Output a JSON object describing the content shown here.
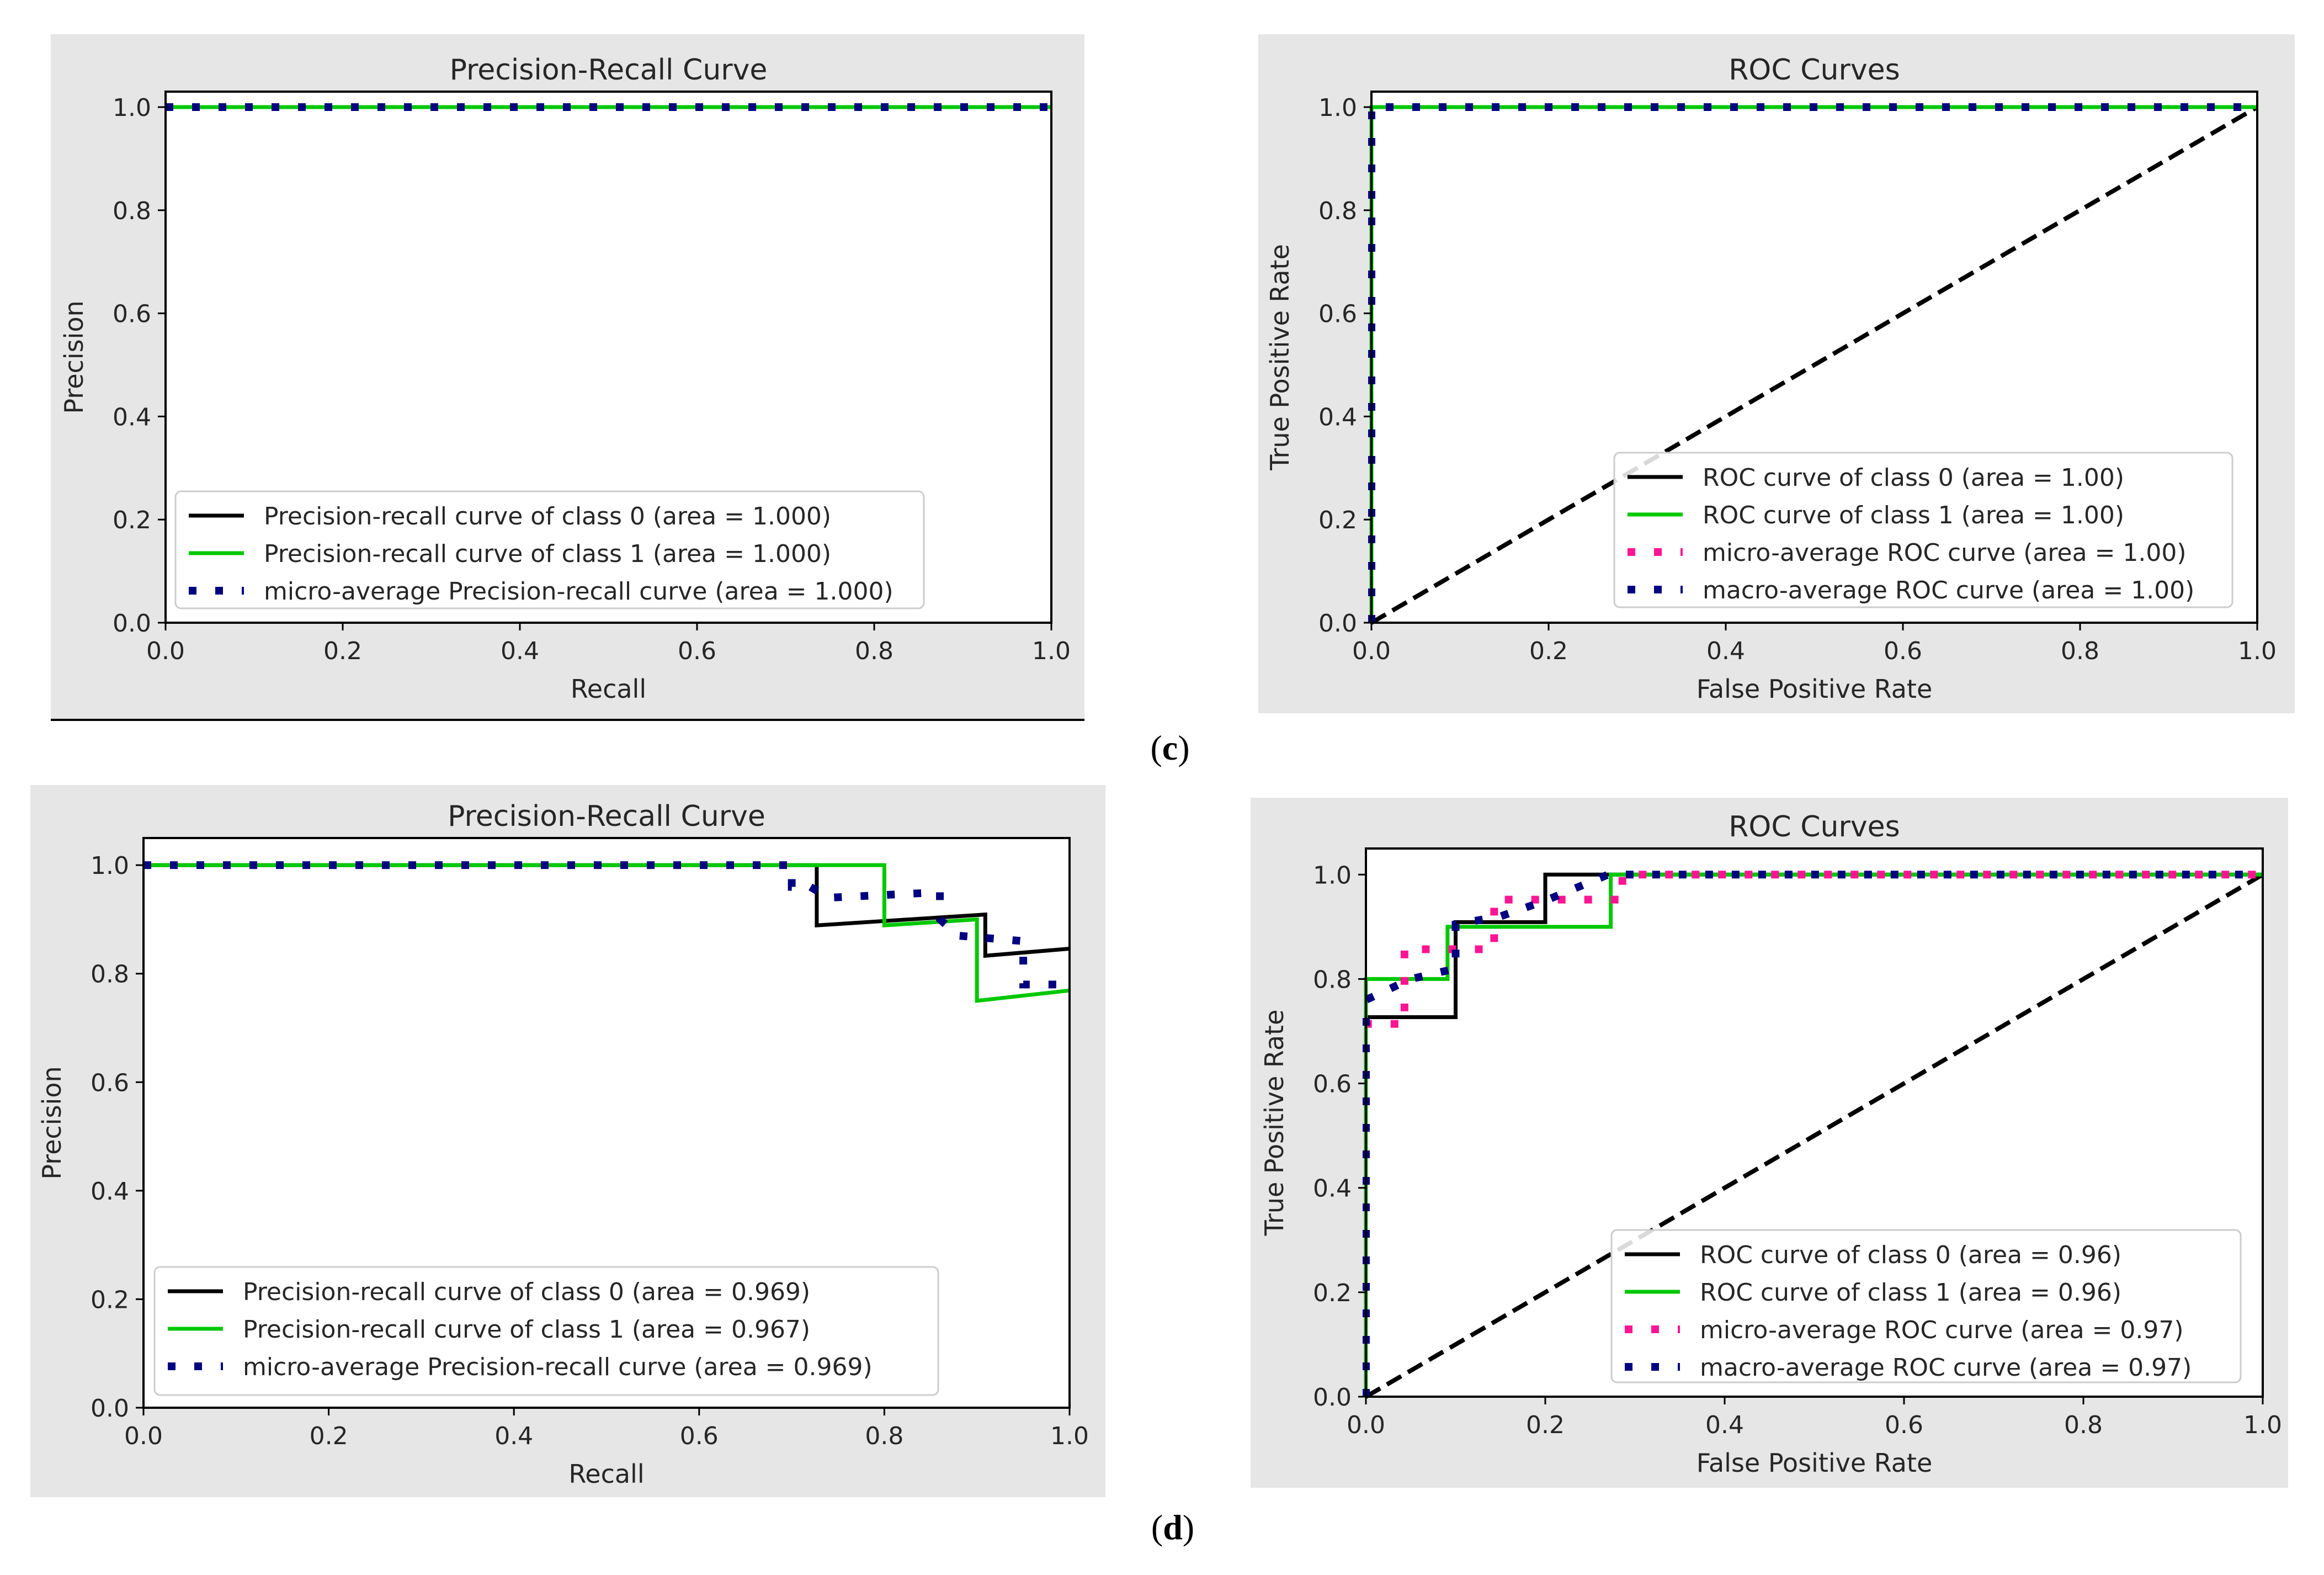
{
  "colors": {
    "panel_bg": "#e6e6e6",
    "plot_bg": "#ffffff",
    "class0": "#000000",
    "class1": "#00c800",
    "micro": "#ff1493",
    "macro": "#000080",
    "diagonal": "#000000"
  },
  "captions": {
    "c_label": "c",
    "d_label": "d"
  },
  "chart_data": [
    {
      "id": "c-pr",
      "type": "line",
      "title": "Precision-Recall Curve",
      "xlabel": "Recall",
      "ylabel": "Precision",
      "xlim": [
        0,
        1
      ],
      "ylim": [
        0,
        1.0
      ],
      "xticks": [
        0.0,
        0.2,
        0.4,
        0.6,
        0.8,
        1.0
      ],
      "yticks": [
        0.0,
        0.2,
        0.4,
        0.6,
        0.8,
        1.0
      ],
      "tick_labels_x": [
        "0.0",
        "0.2",
        "0.4",
        "0.6",
        "0.8",
        "1.0"
      ],
      "tick_labels_y": [
        "0.0",
        "0.2",
        "0.4",
        "0.6",
        "0.8",
        "1.0"
      ],
      "legend_position": "lower-left",
      "series": [
        {
          "name": "Precision-recall curve of class 0 (area = 1.000)",
          "style": "solid",
          "color_key": "class0",
          "x": [
            0,
            1
          ],
          "y": [
            1,
            1
          ]
        },
        {
          "name": "Precision-recall curve of class 1 (area = 1.000)",
          "style": "solid",
          "color_key": "class1",
          "x": [
            0,
            1
          ],
          "y": [
            1,
            1
          ]
        },
        {
          "name": "micro-average Precision-recall curve (area = 1.000)",
          "style": "dotted",
          "color_key": "macro",
          "x": [
            0,
            1
          ],
          "y": [
            1,
            1
          ]
        }
      ]
    },
    {
      "id": "c-roc",
      "type": "line",
      "title": "ROC Curves",
      "xlabel": "False Positive Rate",
      "ylabel": "True Positive Rate",
      "xlim": [
        0,
        1
      ],
      "ylim": [
        0,
        1.0
      ],
      "xticks": [
        0.0,
        0.2,
        0.4,
        0.6,
        0.8,
        1.0
      ],
      "yticks": [
        0.0,
        0.2,
        0.4,
        0.6,
        0.8,
        1.0
      ],
      "tick_labels_x": [
        "0.0",
        "0.2",
        "0.4",
        "0.6",
        "0.8",
        "1.0"
      ],
      "tick_labels_y": [
        "0.0",
        "0.2",
        "0.4",
        "0.6",
        "0.8",
        "1.0"
      ],
      "legend_position": "lower-right",
      "series": [
        {
          "name": "ROC curve of class 0 (area = 1.00)",
          "style": "solid",
          "color_key": "class0",
          "x": [
            0,
            0,
            1
          ],
          "y": [
            0,
            1,
            1
          ]
        },
        {
          "name": "ROC curve of class 1 (area = 1.00)",
          "style": "solid",
          "color_key": "class1",
          "x": [
            0,
            0,
            1
          ],
          "y": [
            0,
            1,
            1
          ]
        },
        {
          "name": "micro-average ROC curve (area = 1.00)",
          "style": "dotted",
          "color_key": "micro",
          "x": [
            0,
            0,
            1
          ],
          "y": [
            0,
            1,
            1
          ]
        },
        {
          "name": "macro-average ROC curve (area = 1.00)",
          "style": "dotted",
          "color_key": "macro",
          "x": [
            0,
            0,
            1
          ],
          "y": [
            0,
            1,
            1
          ]
        }
      ],
      "diagonal": {
        "x": [
          0,
          1
        ],
        "y": [
          0,
          1
        ]
      }
    },
    {
      "id": "d-pr",
      "type": "line",
      "title": "Precision-Recall Curve",
      "xlabel": "Recall",
      "ylabel": "Precision",
      "xlim": [
        0,
        1
      ],
      "ylim": [
        0,
        1.05
      ],
      "xticks": [
        0.0,
        0.2,
        0.4,
        0.6,
        0.8,
        1.0
      ],
      "yticks": [
        0.0,
        0.2,
        0.4,
        0.6,
        0.8,
        1.0
      ],
      "tick_labels_x": [
        "0.0",
        "0.2",
        "0.4",
        "0.6",
        "0.8",
        "1.0"
      ],
      "tick_labels_y": [
        "0.0",
        "0.2",
        "0.4",
        "0.6",
        "0.8",
        "1.0"
      ],
      "legend_position": "lower-left",
      "series": [
        {
          "name": "Precision-recall curve of class 0 (area = 0.969)",
          "style": "solid",
          "color_key": "class0",
          "x": [
            0,
            0.727,
            0.727,
            0.909,
            0.909,
            1.0
          ],
          "y": [
            1.0,
            1.0,
            0.889,
            0.909,
            0.833,
            0.846
          ]
        },
        {
          "name": "Precision-recall curve of class 1 (area = 0.967)",
          "style": "solid",
          "color_key": "class1",
          "x": [
            0,
            0.8,
            0.8,
            0.9,
            0.9,
            1.0
          ],
          "y": [
            1.0,
            1.0,
            0.889,
            0.9,
            0.75,
            0.769
          ]
        },
        {
          "name": "micro-average Precision-recall curve (area = 0.969)",
          "style": "dotted",
          "color_key": "macro",
          "x": [
            0,
            0.7,
            0.7,
            0.72,
            0.74,
            0.86,
            0.86,
            0.88,
            0.88,
            0.95,
            0.95,
            1.0
          ],
          "y": [
            1.0,
            1.0,
            0.96,
            0.96,
            0.94,
            0.95,
            0.9,
            0.87,
            0.87,
            0.86,
            0.78,
            0.78
          ]
        }
      ]
    },
    {
      "id": "d-roc",
      "type": "line",
      "title": "ROC Curves",
      "xlabel": "False Positive Rate",
      "ylabel": "True Positive Rate",
      "xlim": [
        0,
        1
      ],
      "ylim": [
        0,
        1.05
      ],
      "xticks": [
        0.0,
        0.2,
        0.4,
        0.6,
        0.8,
        1.0
      ],
      "yticks": [
        0.0,
        0.2,
        0.4,
        0.6,
        0.8,
        1.0
      ],
      "tick_labels_x": [
        "0.0",
        "0.2",
        "0.4",
        "0.6",
        "0.8",
        "1.0"
      ],
      "tick_labels_y": [
        "0.0",
        "0.2",
        "0.4",
        "0.6",
        "0.8",
        "1.0"
      ],
      "legend_position": "lower-right",
      "series": [
        {
          "name": "ROC curve of class 0 (area = 0.96)",
          "style": "solid",
          "color_key": "class0",
          "x": [
            0,
            0,
            0.1,
            0.1,
            0.2,
            0.2,
            1.0
          ],
          "y": [
            0,
            0.727,
            0.727,
            0.909,
            0.909,
            1.0,
            1.0
          ]
        },
        {
          "name": "ROC curve of class 1 (area = 0.96)",
          "style": "solid",
          "color_key": "class1",
          "x": [
            0,
            0,
            0.091,
            0.091,
            0.273,
            0.273,
            1.0
          ],
          "y": [
            0,
            0.8,
            0.8,
            0.9,
            0.9,
            1.0,
            1.0
          ]
        },
        {
          "name": "micro-average ROC curve (area = 0.97)",
          "style": "dotted",
          "color_key": "micro",
          "x": [
            0,
            0,
            0.043,
            0.043,
            0.095,
            0.095,
            0.143,
            0.143,
            0.19,
            0.19,
            0.286,
            0.286,
            1.0
          ],
          "y": [
            0,
            0.714,
            0.714,
            0.857,
            0.857,
            0.857,
            0.857,
            0.952,
            0.952,
            0.952,
            0.952,
            1.0,
            1.0
          ]
        },
        {
          "name": "macro-average ROC curve (area = 0.97)",
          "style": "dotted",
          "color_key": "macro",
          "x": [
            0,
            0,
            0.05,
            0.1,
            0.1,
            0.15,
            0.2,
            0.27,
            0.27,
            1.0
          ],
          "y": [
            0,
            0.76,
            0.8,
            0.82,
            0.905,
            0.92,
            0.95,
            1.0,
            1.0,
            1.0
          ]
        }
      ],
      "diagonal": {
        "x": [
          0,
          1
        ],
        "y": [
          0,
          1
        ]
      }
    }
  ]
}
